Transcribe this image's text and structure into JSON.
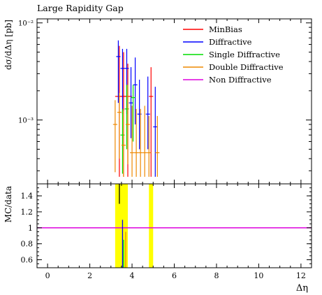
{
  "chart_data": {
    "type": "scatter",
    "title": "Large Rapidity Gap",
    "xlabel": "Δη",
    "ylabel_top": "dσ/dΔη [pb]",
    "ylabel_bottom": "MC/data",
    "xlim": [
      -0.5,
      12.5
    ],
    "x_ticks": [
      "0",
      "2",
      "4",
      "6",
      "8",
      "10",
      "12"
    ],
    "top_panel": {
      "y_scale": "log",
      "ylim": [
        0.00022,
        0.011
      ],
      "y_tick_labels": [
        "10⁻²",
        "10⁻³"
      ],
      "legend_position": "top-right",
      "series": [
        {
          "name": "MinBias",
          "color": "#ff0000",
          "points": [
            {
              "x": 3.4,
              "xerr": 0.2,
              "y": 0.00175,
              "ylo": 0.00026,
              "yhi": 0.0058
            },
            {
              "x": 3.6,
              "xerr": 0.2,
              "y": 0.00175,
              "ylo": 0.00026,
              "yhi": 0.005
            },
            {
              "x": 3.8,
              "xerr": 0.2,
              "y": 0.00175,
              "ylo": 0.00026,
              "yhi": 0.0038
            },
            {
              "x": 4.9,
              "xerr": 0.1,
              "y": 0.00175,
              "ylo": 0.00026,
              "yhi": 0.0035
            }
          ]
        },
        {
          "name": "Diffractive",
          "color": "#0000ff",
          "points": [
            {
              "x": 3.35,
              "xerr": 0.1,
              "y": 0.0045,
              "ylo": 0.0015,
              "yhi": 0.0066
            },
            {
              "x": 3.55,
              "xerr": 0.1,
              "y": 0.0034,
              "ylo": 0.00115,
              "yhi": 0.0054
            },
            {
              "x": 3.75,
              "xerr": 0.1,
              "y": 0.0034,
              "ylo": 0.00115,
              "yhi": 0.0054
            },
            {
              "x": 3.95,
              "xerr": 0.1,
              "y": 0.0015,
              "ylo": 0.00065,
              "yhi": 0.0035
            },
            {
              "x": 4.15,
              "xerr": 0.1,
              "y": 0.0023,
              "ylo": 0.0009,
              "yhi": 0.0044
            },
            {
              "x": 4.35,
              "xerr": 0.1,
              "y": 0.00115,
              "ylo": 0.0005,
              "yhi": 0.0026
            },
            {
              "x": 4.75,
              "xerr": 0.1,
              "y": 0.00115,
              "ylo": 0.0005,
              "yhi": 0.0028
            },
            {
              "x": 5.1,
              "xerr": 0.1,
              "y": 0.00085,
              "ylo": 0.00026,
              "yhi": 0.0022
            }
          ]
        },
        {
          "name": "Single Diffractive",
          "color": "#00dd00",
          "points": [
            {
              "x": 3.55,
              "xerr": 0.1,
              "y": 0.0007,
              "ylo": 0.00028,
              "yhi": 0.0013
            },
            {
              "x": 3.75,
              "xerr": 0.1,
              "y": 0.0013,
              "ylo": 0.0005,
              "yhi": 0.0023
            },
            {
              "x": 4.05,
              "xerr": 0.1,
              "y": 0.0017,
              "ylo": 0.0006,
              "yhi": 0.0023
            }
          ]
        },
        {
          "name": "Double Diffractive",
          "color": "#ee8800",
          "points": [
            {
              "x": 3.2,
              "xerr": 0.1,
              "y": 0.0009,
              "ylo": 0.00029,
              "yhi": 0.0016
            },
            {
              "x": 3.4,
              "xerr": 0.1,
              "y": 0.0012,
              "ylo": 0.0004,
              "yhi": 0.0019
            },
            {
              "x": 3.6,
              "xerr": 0.1,
              "y": 0.00055,
              "ylo": 0.00026,
              "yhi": 0.00125
            },
            {
              "x": 3.8,
              "xerr": 0.1,
              "y": 0.0009,
              "ylo": 0.00035,
              "yhi": 0.0023
            },
            {
              "x": 4.0,
              "xerr": 0.1,
              "y": 0.00046,
              "ylo": 0.00026,
              "yhi": 0.0014
            },
            {
              "x": 4.2,
              "xerr": 0.1,
              "y": 0.00046,
              "ylo": 0.00026,
              "yhi": 0.0013
            },
            {
              "x": 4.4,
              "xerr": 0.1,
              "y": 0.00046,
              "ylo": 0.00026,
              "yhi": 0.0013
            },
            {
              "x": 4.6,
              "xerr": 0.1,
              "y": 0.00046,
              "ylo": 0.00026,
              "yhi": 0.0014
            },
            {
              "x": 4.8,
              "xerr": 0.1,
              "y": 0.00046,
              "ylo": 0.00026,
              "yhi": 0.0011
            },
            {
              "x": 5.2,
              "xerr": 0.1,
              "y": 0.00046,
              "ylo": 0.00026,
              "yhi": 0.0011
            }
          ]
        },
        {
          "name": "Non Diffractive",
          "color": "#dd00dd",
          "points": []
        }
      ]
    },
    "ratio_panel": {
      "ylim": [
        0.5,
        1.55
      ],
      "y_tick_labels": [
        "0.6",
        "0.8",
        "1",
        "1.2",
        "1.4"
      ],
      "y_tick_values": [
        0.6,
        0.8,
        1.0,
        1.2,
        1.4
      ],
      "reference_line": {
        "y": 1.0,
        "color": "#dd00dd"
      },
      "uncertainty_bands": [
        {
          "x_from": 3.2,
          "x_to": 3.8,
          "color": "#ffff00"
        },
        {
          "x_from": 4.8,
          "x_to": 5.0,
          "color": "#ffff00"
        }
      ],
      "ratio_points": [
        {
          "x": 3.4,
          "y": 1.4,
          "ylo": 1.3,
          "yhi": 1.55,
          "color": "#000000"
        },
        {
          "x": 3.55,
          "y": 0.9,
          "ylo": 0.5,
          "yhi": 1.1,
          "color": "#0000ff"
        },
        {
          "x": 3.6,
          "y": 0.7,
          "ylo": 0.5,
          "yhi": 0.85,
          "color": "#00dd00"
        },
        {
          "x": 3.7,
          "y": 0.75,
          "ylo": 0.5,
          "yhi": 0.95,
          "color": "#ee8800"
        }
      ]
    }
  }
}
